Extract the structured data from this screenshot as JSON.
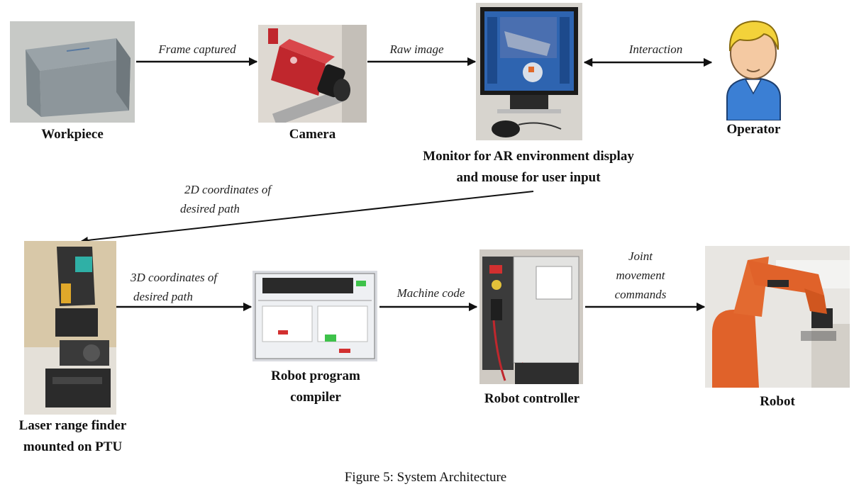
{
  "nodes": {
    "workpiece": {
      "label": "Workpiece"
    },
    "camera": {
      "label": "Camera"
    },
    "monitor": {
      "label_line1": "Monitor for AR environment display",
      "label_line2": "and mouse for user input"
    },
    "operator": {
      "label": "Operator"
    },
    "laser": {
      "label_line1": "Laser range finder",
      "label_line2": "mounted on PTU"
    },
    "compiler": {
      "label_line1": "Robot program",
      "label_line2": "compiler"
    },
    "controller": {
      "label": "Robot controller"
    },
    "robot": {
      "label": "Robot"
    }
  },
  "edges": {
    "frame_captured": "Frame captured",
    "raw_image": "Raw image",
    "interaction": "Interaction",
    "coords2d_line1": "2D coordinates of",
    "coords2d_line2": "desired path",
    "coords3d_line1": "3D coordinates of",
    "coords3d_line2": "desired path",
    "machine_code": "Machine code",
    "joint_line1": "Joint",
    "joint_line2": "movement",
    "joint_line3": "commands"
  },
  "figure_caption": "Figure 5: System Architecture",
  "colors": {
    "arrow": "#111111",
    "workpiece_metal": "#8d969b",
    "camera_red": "#c0272d",
    "operator_hair": "#f3d23a",
    "operator_shirt": "#3b7fd4",
    "robot_orange": "#e0622a"
  }
}
